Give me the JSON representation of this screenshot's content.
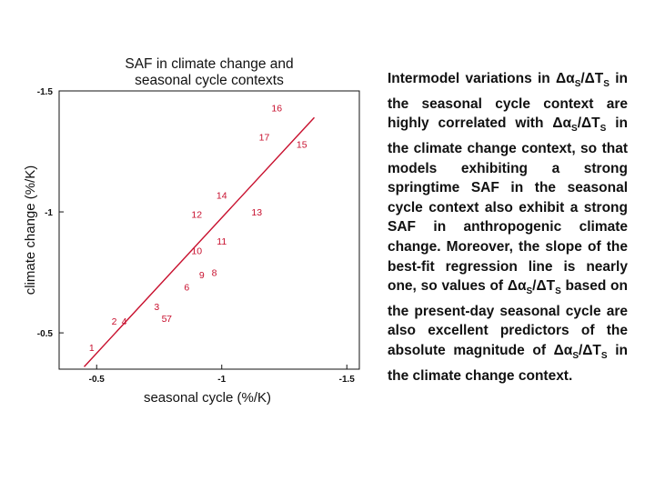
{
  "chart_data": {
    "type": "scatter",
    "title": "SAF in climate change and seasonal cycle contexts",
    "title_lines": [
      "SAF in climate change and",
      "seasonal cycle contexts"
    ],
    "xlabel": "seasonal cycle (%/K)",
    "ylabel": "climate change (%/K)",
    "xlim": [
      -0.35,
      -1.55
    ],
    "ylim": [
      -0.35,
      -1.5
    ],
    "x_ticks": [
      -0.5,
      -1,
      -1.5
    ],
    "x_tick_labels": [
      "-0.5",
      "-1",
      "-1.5"
    ],
    "y_ticks": [
      -1.5,
      -1,
      -0.5
    ],
    "y_tick_labels": [
      "-1.5",
      "-1",
      "-0.5"
    ],
    "points": [
      {
        "label": "1",
        "x": -0.48,
        "y": -0.44
      },
      {
        "label": "2",
        "x": -0.57,
        "y": -0.55
      },
      {
        "label": "4",
        "x": -0.61,
        "y": -0.55
      },
      {
        "label": "3",
        "x": -0.74,
        "y": -0.61
      },
      {
        "label": "5",
        "x": -0.77,
        "y": -0.56
      },
      {
        "label": "7",
        "x": -0.79,
        "y": -0.56
      },
      {
        "label": "6",
        "x": -0.86,
        "y": -0.69
      },
      {
        "label": "9",
        "x": -0.92,
        "y": -0.74
      },
      {
        "label": "8",
        "x": -0.97,
        "y": -0.75
      },
      {
        "label": "10",
        "x": -0.9,
        "y": -0.84
      },
      {
        "label": "11",
        "x": -1.0,
        "y": -0.88
      },
      {
        "label": "12",
        "x": -0.9,
        "y": -0.99
      },
      {
        "label": "13",
        "x": -1.14,
        "y": -1.0
      },
      {
        "label": "14",
        "x": -1.0,
        "y": -1.07
      },
      {
        "label": "17",
        "x": -1.17,
        "y": -1.31
      },
      {
        "label": "15",
        "x": -1.32,
        "y": -1.28
      },
      {
        "label": "16",
        "x": -1.22,
        "y": -1.43
      }
    ],
    "fit_line": {
      "x": [
        -0.45,
        -1.37
      ],
      "y": [
        -0.36,
        -1.39
      ]
    },
    "color": "#c8102e"
  },
  "description": {
    "segments": [
      {
        "t": "Intermodel variations in "
      },
      {
        "t": "Δα"
      },
      {
        "t": "S",
        "sub": true
      },
      {
        "t": "/ΔT"
      },
      {
        "t": "S",
        "sub": true
      },
      {
        "t": " in the seasonal cycle context are highly correlated with "
      },
      {
        "t": "Δα"
      },
      {
        "t": "S",
        "sub": true
      },
      {
        "t": "/ΔT"
      },
      {
        "t": "S",
        "sub": true
      },
      {
        "t": " in the climate change context, so that models exhibiting a strong springtime SAF in the seasonal cycle context also exhibit a strong SAF in anthropogenic climate change. Moreover, the slope of the best-fit regression line is nearly one, so values of "
      },
      {
        "t": "Δα"
      },
      {
        "t": "S",
        "sub": true
      },
      {
        "t": "/ΔT"
      },
      {
        "t": "S",
        "sub": true
      },
      {
        "t": " based on the present-day seasonal cycle are also excellent predictors of the absolute magnitude of "
      },
      {
        "t": "Δα"
      },
      {
        "t": "S",
        "sub": true
      },
      {
        "t": "/ΔT"
      },
      {
        "t": "S",
        "sub": true
      },
      {
        "t": " in the climate change context."
      }
    ]
  }
}
